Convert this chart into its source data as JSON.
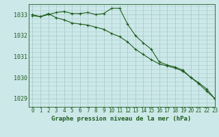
{
  "title": "Graphe pression niveau de la mer (hPa)",
  "background_color": "#cce8e8",
  "grid_color": "#aacccc",
  "line_color": "#1e5c1e",
  "xlim": [
    -0.5,
    23
  ],
  "ylim": [
    1028.6,
    1033.5
  ],
  "yticks": [
    1029,
    1030,
    1031,
    1032,
    1033
  ],
  "xtick_labels": [
    "0",
    "1",
    "2",
    "3",
    "4",
    "5",
    "6",
    "7",
    "8",
    "9",
    "10",
    "11",
    "12",
    "13",
    "14",
    "15",
    "16",
    "17",
    "18",
    "19",
    "20",
    "21",
    "22",
    "23"
  ],
  "series1": [
    1033.0,
    1032.9,
    1033.0,
    1033.1,
    1033.15,
    1033.05,
    1033.05,
    1033.1,
    1033.0,
    1033.05,
    1033.3,
    1033.3,
    1032.55,
    1032.0,
    1031.65,
    1031.35,
    1030.75,
    1030.6,
    1030.5,
    1030.35,
    1030.0,
    1029.7,
    1029.35,
    1029.0
  ],
  "series2": [
    1032.95,
    1032.9,
    1033.05,
    1032.85,
    1032.75,
    1032.6,
    1032.55,
    1032.5,
    1032.4,
    1032.3,
    1032.1,
    1031.95,
    1031.7,
    1031.35,
    1031.1,
    1030.85,
    1030.65,
    1030.55,
    1030.45,
    1030.3,
    1030.0,
    1029.75,
    1029.45,
    1029.0
  ],
  "ylabel_fontsize": 6,
  "xlabel_fontsize": 5.5,
  "title_fontsize": 6.5,
  "linewidth": 0.8,
  "markersize": 3
}
